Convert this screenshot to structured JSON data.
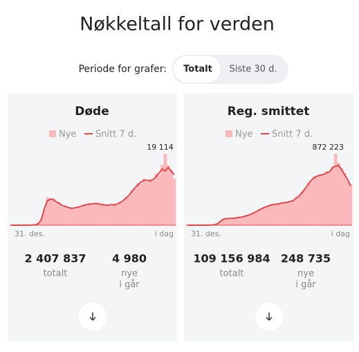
{
  "title": "Nøkkeltall for verden",
  "period": {
    "label": "Periode for grafer:",
    "options": [
      "Totalt",
      "Siste 30 d."
    ]
  },
  "chart_data": [
    {
      "type": "bar",
      "title": "Døde",
      "categories": [
        "31. des.",
        null,
        null,
        null,
        null,
        null,
        null,
        null,
        null,
        null,
        null,
        null,
        null,
        null,
        null,
        null,
        null,
        null,
        null,
        null,
        null,
        null,
        null,
        null,
        null,
        null,
        null,
        null,
        null,
        null,
        null,
        null,
        null,
        null,
        null,
        null,
        null,
        null,
        null,
        null,
        null,
        null,
        null,
        null,
        null,
        null,
        null,
        null,
        null,
        null,
        null,
        null,
        null,
        null,
        "i dag"
      ],
      "ylim": [
        0,
        20400
      ],
      "series": [
        {
          "name": "Nye",
          "color": "#fbb9bc",
          "values": [
            0,
            0,
            5,
            12,
            8,
            18,
            25,
            60,
            90,
            500,
            1700,
            4200,
            7500,
            6800,
            7200,
            5900,
            6100,
            4800,
            5300,
            4400,
            4800,
            4300,
            5100,
            4700,
            5600,
            5200,
            6000,
            5400,
            6100,
            5500,
            5800,
            5100,
            5600,
            5200,
            5800,
            5400,
            6300,
            6200,
            7600,
            7700,
            9400,
            9700,
            11300,
            11000,
            12500,
            11600,
            12400,
            11900,
            13800,
            13500,
            16200,
            19114,
            16000,
            14800,
            12500
          ]
        },
        {
          "name": "Snitt 7 d.",
          "color": "#e0474c",
          "values": [
            0,
            0,
            5,
            10,
            10,
            15,
            30,
            50,
            100,
            400,
            1500,
            4500,
            6500,
            7000,
            6800,
            6200,
            5800,
            5200,
            5000,
            4700,
            4500,
            4600,
            4800,
            5000,
            5300,
            5500,
            5600,
            5700,
            5800,
            5700,
            5500,
            5400,
            5300,
            5500,
            5400,
            5600,
            6000,
            6500,
            7200,
            8000,
            9000,
            10000,
            10800,
            11500,
            12000,
            12000,
            11800,
            12200,
            13000,
            14000,
            15000,
            14500,
            15500,
            14500,
            13500
          ]
        }
      ],
      "annotation": {
        "value": 19114,
        "label": "19 114"
      },
      "stats": [
        {
          "value": "2 407 837",
          "caption": [
            "totalt"
          ]
        },
        {
          "value": "4 980",
          "caption": [
            "nye",
            "i går"
          ]
        }
      ]
    },
    {
      "type": "bar",
      "title": "Reg. smittet",
      "categories": [
        "31. des.",
        null,
        null,
        null,
        null,
        null,
        null,
        null,
        null,
        null,
        null,
        null,
        null,
        null,
        null,
        null,
        null,
        null,
        null,
        null,
        null,
        null,
        null,
        null,
        null,
        null,
        null,
        null,
        null,
        null,
        null,
        null,
        null,
        null,
        null,
        null,
        null,
        null,
        null,
        null,
        null,
        null,
        null,
        null,
        null,
        null,
        null,
        null,
        null,
        null,
        null,
        null,
        null,
        null,
        "i dag"
      ],
      "ylim": [
        0,
        931000
      ],
      "series": [
        {
          "name": "Nye",
          "color": "#fbb9bc",
          "values": [
            0,
            0,
            0,
            0,
            0,
            0,
            0,
            1500,
            2500,
            6000,
            25000,
            45000,
            80000,
            78000,
            85000,
            82000,
            92000,
            93000,
            105000,
            108000,
            125000,
            132000,
            158000,
            168000,
            198000,
            205000,
            232000,
            238000,
            258000,
            250000,
            268000,
            265000,
            285000,
            278000,
            298000,
            305000,
            345000,
            355000,
            415000,
            445000,
            520000,
            540000,
            600000,
            590000,
            625000,
            610000,
            660000,
            640000,
            720000,
            872223,
            760000,
            700000,
            640000,
            540000,
            500000
          ]
        },
        {
          "name": "Snitt 7 d.",
          "color": "#e0474c",
          "values": [
            0,
            0,
            0,
            0,
            0,
            0,
            0,
            1000,
            2000,
            5000,
            20000,
            50000,
            75000,
            80000,
            82000,
            85000,
            88000,
            95000,
            100000,
            110000,
            120000,
            135000,
            150000,
            170000,
            190000,
            210000,
            225000,
            240000,
            250000,
            255000,
            260000,
            270000,
            275000,
            280000,
            290000,
            300000,
            330000,
            360000,
            400000,
            450000,
            500000,
            550000,
            580000,
            600000,
            610000,
            620000,
            640000,
            650000,
            700000,
            720000,
            730000,
            680000,
            620000,
            560000,
            480000
          ]
        }
      ],
      "annotation": {
        "value": 872223,
        "label": "872 223"
      },
      "stats": [
        {
          "value": "109 156 984",
          "caption": [
            "totalt"
          ]
        },
        {
          "value": "248 735",
          "caption": [
            "nye",
            "i går"
          ]
        }
      ]
    }
  ]
}
